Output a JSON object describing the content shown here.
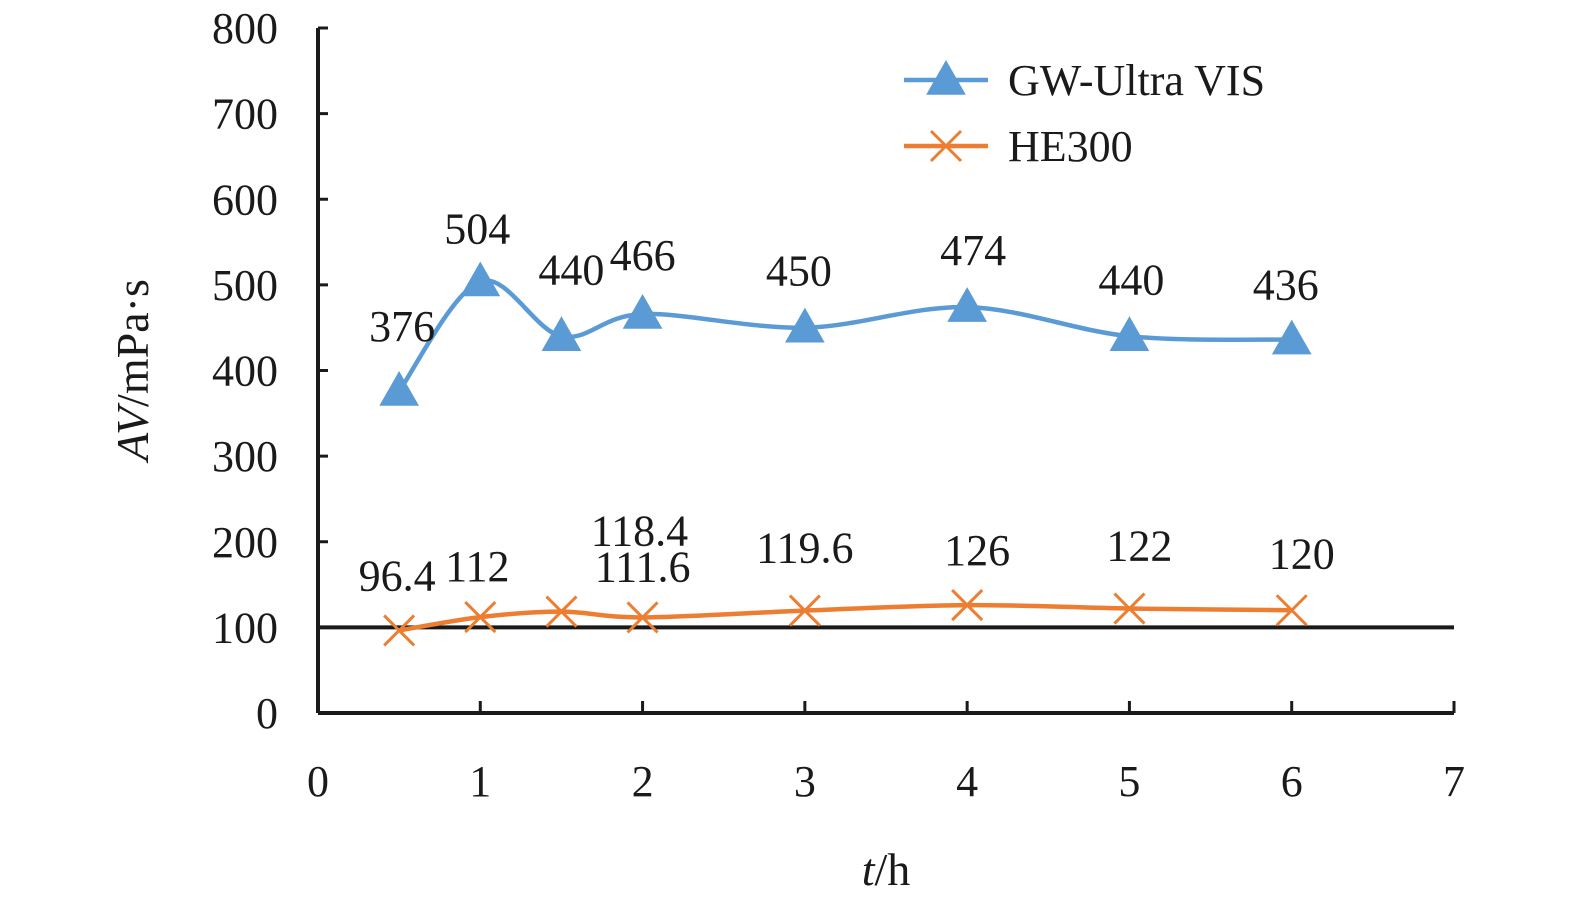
{
  "chart_data": {
    "type": "line",
    "xlabel": {
      "italic": "t",
      "rest": "/h"
    },
    "ylabel": {
      "italic": "AV",
      "rest": "/mPa·s"
    },
    "xlim": [
      0,
      7
    ],
    "ylim": [
      0,
      800
    ],
    "x_ticks": [
      "0",
      "1",
      "2",
      "3",
      "4",
      "5",
      "6",
      "7"
    ],
    "y_ticks": [
      "0",
      "100",
      "200",
      "300",
      "400",
      "500",
      "600",
      "700",
      "800"
    ],
    "grid": false,
    "legend_position": "top-right",
    "reference_line": {
      "y": 100
    },
    "series": [
      {
        "name": "GW-Ultra VIS",
        "color": "#5b9bd5",
        "marker": "triangle",
        "x": [
          0.5,
          1,
          1.5,
          2,
          3,
          4,
          5,
          6
        ],
        "y": [
          376,
          504,
          440,
          466,
          450,
          474,
          440,
          436
        ],
        "labels": [
          "376",
          "504",
          "440",
          "466",
          "450",
          "474",
          "440",
          "436"
        ]
      },
      {
        "name": "HE300",
        "color": "#ed7d31",
        "marker": "x",
        "x": [
          0.5,
          1,
          1.5,
          2,
          3,
          4,
          5,
          6
        ],
        "y": [
          96.4,
          112,
          118.4,
          111.6,
          119.6,
          126,
          122,
          120
        ],
        "labels": [
          "96.4",
          "112",
          "118.4",
          "111.6",
          "119.6",
          "126",
          "122",
          "120"
        ]
      }
    ]
  }
}
